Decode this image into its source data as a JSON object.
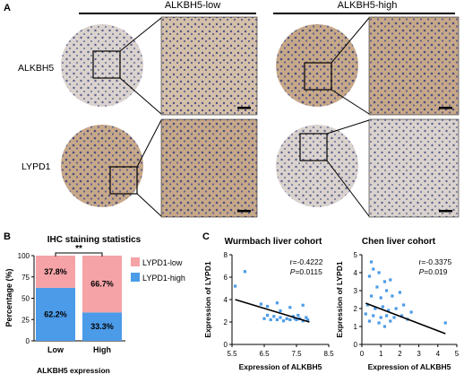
{
  "panels": {
    "a": "A",
    "b": "B",
    "c": "C"
  },
  "ihc": {
    "groups": [
      "ALKBH5-low",
      "ALKBH5-high"
    ],
    "rows": [
      "ALKBH5",
      "LYPD1"
    ],
    "colors": {
      "brown": "#b0916f",
      "light": "#d8cfc8",
      "nuclei": "#4a4f7e"
    }
  },
  "bar": {
    "title": "IHC staining statistics",
    "significance": "**",
    "chart_data": {
      "type": "bar",
      "stacked": true,
      "categories": [
        "Low",
        "High"
      ],
      "series": [
        {
          "name": "LYPD1-high",
          "values": [
            62.2,
            33.3
          ],
          "labels": [
            "62.2%",
            "33.3%"
          ],
          "color": "#4b9be8"
        },
        {
          "name": "LYPD1-low",
          "values": [
            37.8,
            66.7
          ],
          "labels": [
            "37.8%",
            "66.7%"
          ],
          "color": "#f5a3a7"
        }
      ],
      "xlabel": "ALKBH5 expression",
      "ylabel": "Percentage (%)",
      "ylim": [
        0,
        100
      ],
      "yticks": [
        0,
        25,
        50,
        75,
        100
      ],
      "legend": "right"
    }
  },
  "scatter1": {
    "title": "Wurmbach liver cohort",
    "r": "r=-0.4222",
    "p_label": "P",
    "p_value": "=0.0115",
    "chart_data": {
      "type": "scatter",
      "xlabel": "Expression of ALKBH5",
      "ylabel": "Expression of LYPD1",
      "xlim": [
        5.5,
        8.5
      ],
      "ylim": [
        0,
        8
      ],
      "xticks": [
        "5.5",
        "6.5",
        "7.5",
        "8.5"
      ],
      "yticks": [
        "0",
        "2",
        "4",
        "6",
        "8"
      ],
      "points": [
        [
          5.9,
          6.5
        ],
        [
          5.6,
          5.2
        ],
        [
          6.4,
          3.6
        ],
        [
          6.6,
          3.4
        ],
        [
          6.9,
          3.7
        ],
        [
          7.0,
          3.0
        ],
        [
          7.3,
          3.3
        ],
        [
          7.7,
          3.5
        ],
        [
          6.5,
          2.3
        ],
        [
          6.6,
          2.6
        ],
        [
          6.7,
          2.2
        ],
        [
          6.8,
          2.5
        ],
        [
          6.9,
          2.2
        ],
        [
          7.0,
          2.4
        ],
        [
          7.1,
          2.1
        ],
        [
          7.2,
          2.3
        ],
        [
          7.3,
          2.2
        ],
        [
          7.4,
          2.5
        ],
        [
          7.45,
          2.3
        ],
        [
          7.5,
          2.2
        ],
        [
          7.55,
          2.6
        ],
        [
          7.6,
          2.3
        ],
        [
          7.7,
          2.1
        ],
        [
          7.8,
          2.4
        ],
        [
          7.85,
          2.2
        ]
      ],
      "fit": [
        [
          5.6,
          4.0
        ],
        [
          7.9,
          2.0
        ]
      ],
      "color": "#4b9be8"
    }
  },
  "scatter2": {
    "title": "Chen liver cohort",
    "r": "r=-0.3375",
    "p_label": "P",
    "p_value": "=0.019",
    "chart_data": {
      "type": "scatter",
      "xlabel": "Expression of ALKBH5",
      "ylabel": "Expression of LYPD1",
      "xlim": [
        0,
        5
      ],
      "ylim": [
        0,
        5
      ],
      "xticks": [
        "0",
        "1",
        "2",
        "3",
        "4",
        "5"
      ],
      "yticks": [
        "0",
        "1",
        "2",
        "3",
        "4",
        "5"
      ],
      "points": [
        [
          0.5,
          4.6
        ],
        [
          0.6,
          4.2
        ],
        [
          0.4,
          3.8
        ],
        [
          0.9,
          4.0
        ],
        [
          1.2,
          3.5
        ],
        [
          1.5,
          3.6
        ],
        [
          0.8,
          3.2
        ],
        [
          1.3,
          3.0
        ],
        [
          0.5,
          2.7
        ],
        [
          1.0,
          2.6
        ],
        [
          1.6,
          2.7
        ],
        [
          2.0,
          2.9
        ],
        [
          0.3,
          2.2
        ],
        [
          0.7,
          2.0
        ],
        [
          1.1,
          2.1
        ],
        [
          1.4,
          1.9
        ],
        [
          1.8,
          2.0
        ],
        [
          2.2,
          2.2
        ],
        [
          0.2,
          1.7
        ],
        [
          0.6,
          1.6
        ],
        [
          1.0,
          1.5
        ],
        [
          1.3,
          1.6
        ],
        [
          1.7,
          1.5
        ],
        [
          2.1,
          1.6
        ],
        [
          2.6,
          1.8
        ],
        [
          0.4,
          1.3
        ],
        [
          0.9,
          1.2
        ],
        [
          1.5,
          1.3
        ],
        [
          2.4,
          1.4
        ],
        [
          1.2,
          1.0
        ],
        [
          4.4,
          1.2
        ]
      ],
      "fit": [
        [
          0.2,
          2.3
        ],
        [
          4.4,
          0.6
        ]
      ],
      "color": "#4b9be8"
    }
  }
}
